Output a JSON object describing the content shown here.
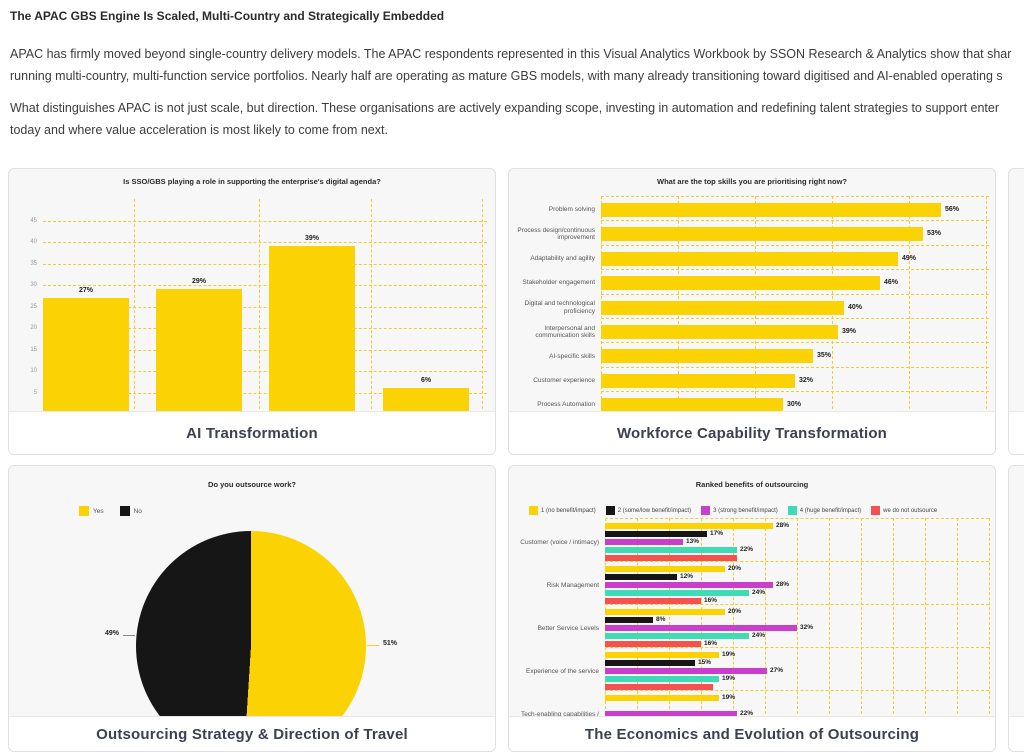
{
  "page": {
    "heading": "The APAC GBS Engine Is Scaled, Multi-Country and Strategically Embedded",
    "paragraphs": [
      {
        "lines": [
          "APAC has firmly moved beyond single-country delivery models. The APAC respondents represented in this Visual Analytics Workbook by SSON Research & Analytics show that shar",
          "running multi-country, multi-function service portfolios. Nearly half are operating as mature GBS models, with many already transitioning toward digitised and AI-enabled operating s"
        ]
      },
      {
        "lines": [
          "What distinguishes APAC is not just scale, but direction. These organisations are actively expanding scope, investing in automation and redefining talent strategies to support enter",
          "today and where value acceleration is most likely to come from next."
        ]
      }
    ]
  },
  "colors": {
    "yellow": "#FBD304",
    "black": "#161616",
    "magenta": "#C93ECA",
    "teal": "#3EDBB4",
    "red": "#F5524F",
    "grid_yellow": "#F2CC35",
    "card_title": "#3B4152"
  },
  "chart_data": [
    {
      "type": "bar",
      "title": "Is SSO/GBS playing a role in supporting the enterprise's digital agenda?",
      "card_title": "AI Transformation",
      "values": [
        27,
        29,
        39,
        6
      ],
      "value_labels": [
        "27%",
        "29%",
        "39%",
        "6%"
      ],
      "y_ticks": [
        5,
        10,
        15,
        20,
        25,
        30,
        35,
        40,
        45
      ],
      "ylim": [
        0,
        47
      ],
      "grid": "dashed yellow",
      "bar_color": "#FBD304"
    },
    {
      "type": "bar",
      "orientation": "horizontal",
      "title": "What are the top skills you are prioritising right now?",
      "card_title": "Workforce Capability Transformation",
      "categories": [
        "Problem solving",
        "Process design/continuous\nimprovement",
        "Adaptability and agility",
        "Stakeholder engagement",
        "Digital and technological\nproficiency",
        "Interpersonal and\ncommunication skills",
        "AI-specific skills",
        "Customer experience",
        "Process Automation"
      ],
      "values": [
        56,
        53,
        49,
        46,
        40,
        39,
        35,
        32,
        30
      ],
      "value_labels": [
        "56%",
        "53%",
        "49%",
        "46%",
        "40%",
        "39%",
        "35%",
        "32%",
        "30%"
      ],
      "xlim": [
        0,
        63
      ],
      "grid": "dashed yellow",
      "bar_color": "#FBD304"
    },
    {
      "type": "pie",
      "title": "Do you outsource work?",
      "card_title": "Outsourcing Strategy & Direction of Travel",
      "legend_position": "top-left",
      "slices": [
        {
          "label": "Yes",
          "value": 51,
          "value_label": "51%",
          "color": "#FBD304"
        },
        {
          "label": "No",
          "value": 49,
          "value_label": "49%",
          "color": "#161616"
        }
      ]
    },
    {
      "type": "bar",
      "orientation": "horizontal",
      "grouped": true,
      "title": "Ranked benefits of outsourcing",
      "card_title": "The Economics and Evolution of Outsourcing",
      "categories": [
        "Customer (voice / intimacy)",
        "Risk Management",
        "Better Service Levels",
        "Experience of the service",
        "Tech-enabling capabilities /"
      ],
      "series": [
        {
          "name": "1 (no benefit/impact)",
          "color": "#FBD304",
          "values": [
            28,
            20,
            20,
            19,
            19
          ],
          "value_labels": [
            "28%",
            "20%",
            "20%",
            "19%",
            "19%"
          ]
        },
        {
          "name": "2 (some/low benefit/impact)",
          "color": "#161616",
          "values": [
            17,
            12,
            8,
            15,
            0
          ],
          "value_labels": [
            "17%",
            "12%",
            "8%",
            "15%",
            ""
          ]
        },
        {
          "name": "3 (strong benefit/impact)",
          "color": "#C93ECA",
          "values": [
            13,
            28,
            32,
            27,
            22
          ],
          "value_labels": [
            "13%",
            "28%",
            "32%",
            "27%",
            "22%"
          ]
        },
        {
          "name": "4 (huge benefit/impact)",
          "color": "#3EDBB4",
          "values": [
            22,
            24,
            24,
            19,
            0
          ],
          "value_labels": [
            "22%",
            "24%",
            "24%",
            "19%",
            ""
          ]
        },
        {
          "name": "we do not outsource",
          "color": "#F5524F",
          "values": [
            22,
            16,
            16,
            18,
            0
          ],
          "value_labels": [
            "",
            "16%",
            "16%",
            "",
            ""
          ]
        }
      ],
      "xlim": [
        0,
        64
      ],
      "grid": "dashed yellow"
    }
  ]
}
